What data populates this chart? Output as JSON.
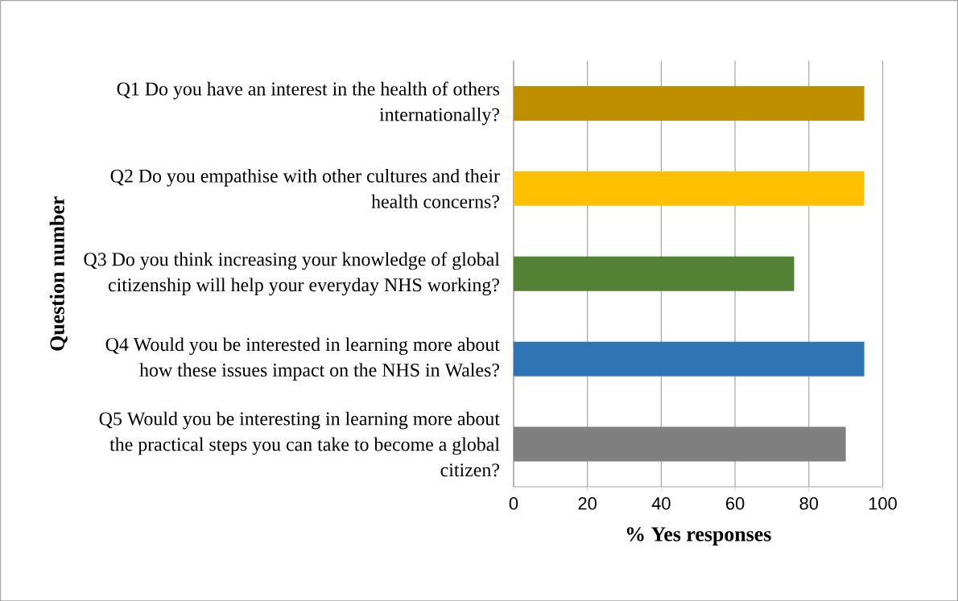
{
  "chart_data": {
    "type": "bar",
    "orientation": "horizontal",
    "categories": [
      "Q1 Do you have an interest in the health of others internationally?",
      "Q2 Do you empathise with other cultures and their health concerns?",
      "Q3 Do you think increasing your knowledge of global citizenship will help your everyday NHS working?",
      "Q4 Would you be interested in learning more about how these issues impact on the NHS in Wales?",
      "Q5 Would you be interesting in learning more about the practical steps you can take to become a global citizen?"
    ],
    "values": [
      95,
      95,
      76,
      95,
      90
    ],
    "colors": [
      "#bf8f00",
      "#ffc000",
      "#548235",
      "#2e75b6",
      "#7f7f7f"
    ],
    "xlim": [
      0,
      100
    ],
    "xticks": [
      0,
      20,
      40,
      60,
      80,
      100
    ],
    "xlabel": "% Yes responses",
    "ylabel": "Question number",
    "grid": "x"
  }
}
